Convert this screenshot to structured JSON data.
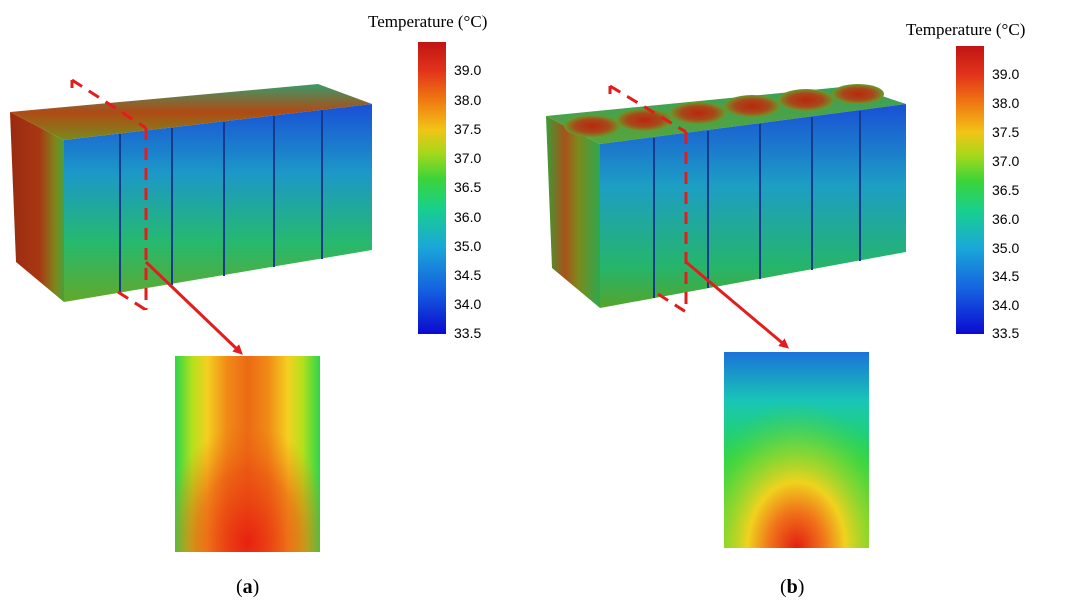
{
  "panels": [
    {
      "id": "a",
      "caption_open": "(",
      "caption_letter": "a",
      "caption_close": ")"
    },
    {
      "id": "b",
      "caption_open": "(",
      "caption_letter": "b",
      "caption_close": ")"
    }
  ],
  "legend": {
    "title": "Temperature (°C)",
    "ticks": [
      "39.0",
      "38.0",
      "37.5",
      "37.0",
      "36.5",
      "36.0",
      "35.0",
      "34.5",
      "34.0",
      "33.5"
    ]
  },
  "colors": {
    "colormap": [
      "#0a0ad0",
      "#1560e0",
      "#1aa8d8",
      "#19d08c",
      "#3ad43a",
      "#a6d81a",
      "#f2c416",
      "#f07a12",
      "#e2341a",
      "#c01414"
    ],
    "section_line": "#e31d1d"
  }
}
